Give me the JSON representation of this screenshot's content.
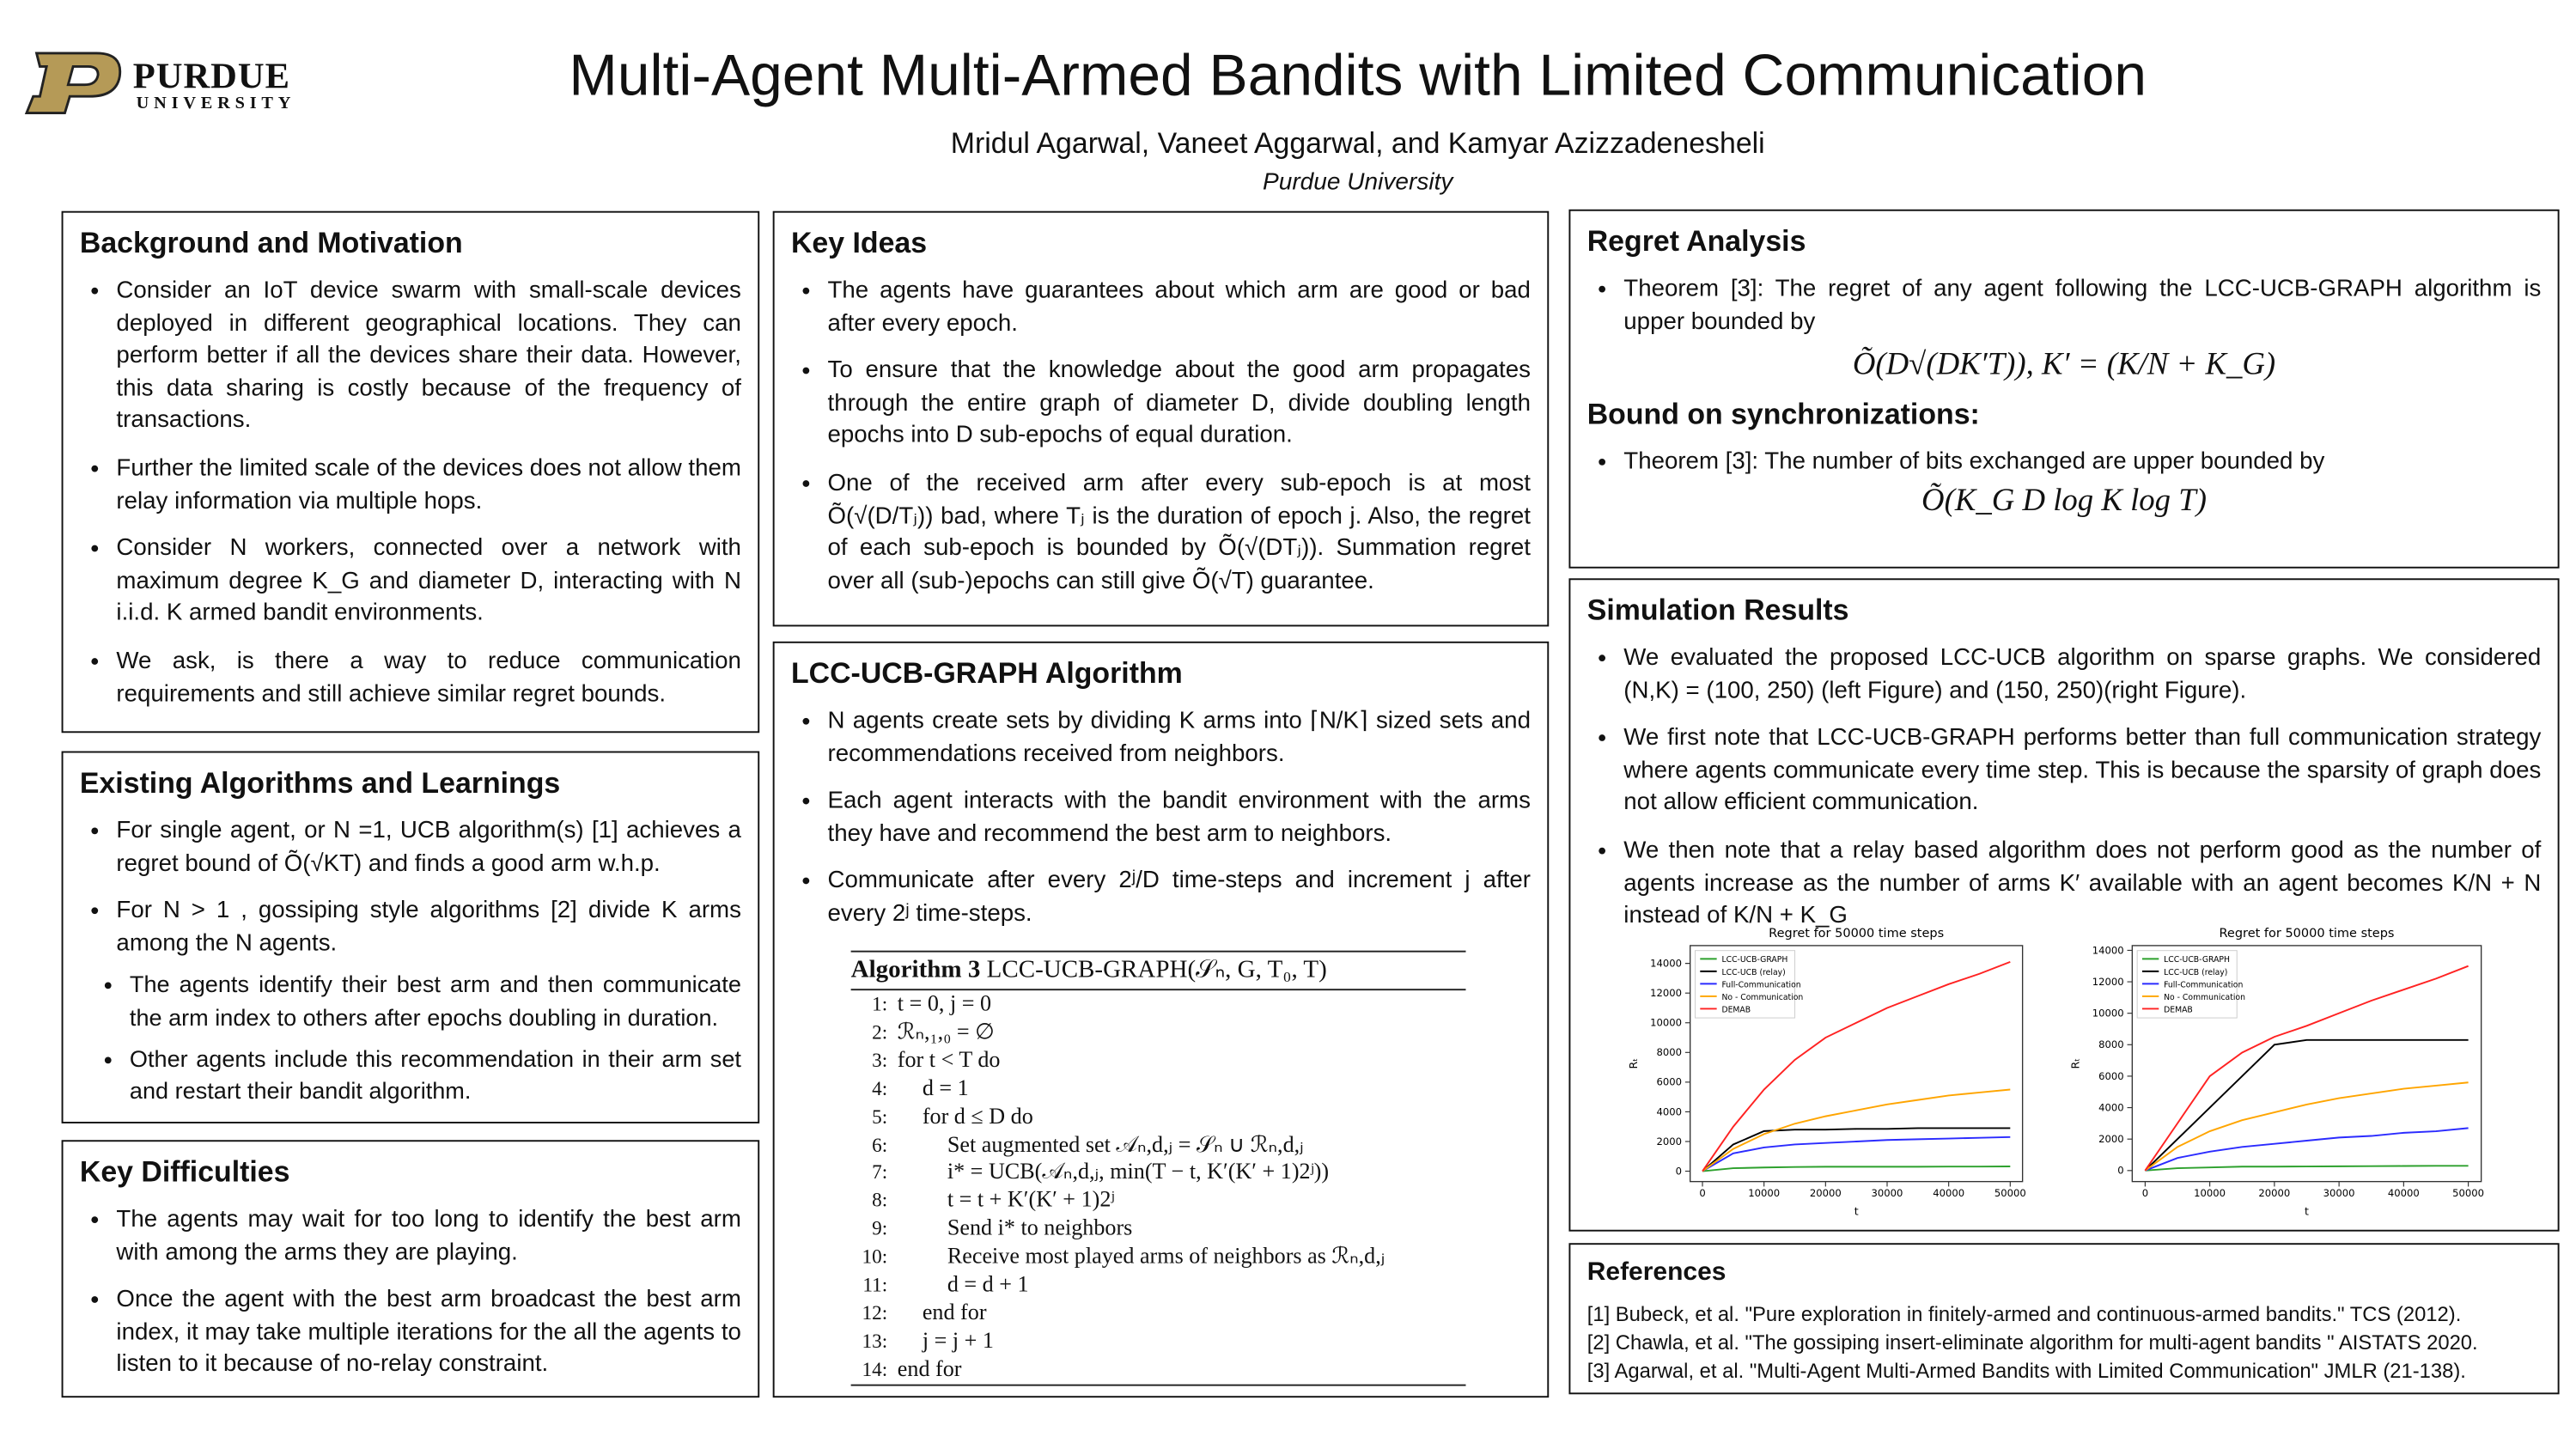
{
  "header": {
    "logo_name": "PURDUE",
    "logo_sub": "UNIVERSITY",
    "title": "Multi-Agent Multi-Armed Bandits with Limited Communication",
    "authors": "Mridul Agarwal, Vaneet Aggarwal, and Kamyar Azizzadenesheli",
    "affiliation": "Purdue University"
  },
  "sections": {
    "background": {
      "heading": "Background and Motivation",
      "bullets": [
        "Consider an IoT device swarm with small-scale devices deployed in different geographical locations. They can perform better if all the devices share their data. However, this data sharing is costly because of the frequency of transactions.",
        "Further the limited scale of the devices does not allow them relay information via multiple hops.",
        "Consider N workers, connected over a network with maximum degree K_G and diameter D, interacting with N i.i.d. K armed bandit environments.",
        "We ask, is there a way to reduce communication requirements and still achieve similar regret bounds."
      ]
    },
    "existing": {
      "heading": "Existing Algorithms and Learnings",
      "bullets": [
        "For single agent, or N =1,  UCB algorithm(s) [1] achieves a regret bound of Õ(√KT) and finds a good arm w.h.p.",
        "For N > 1 , gossiping style algorithms [2] divide K arms among the N agents."
      ],
      "sub_bullets": [
        "The agents identify their best arm and then communicate the arm index to others after epochs doubling in duration.",
        "Other agents include this recommendation in their arm set and restart their bandit algorithm."
      ]
    },
    "difficulties": {
      "heading": "Key Difficulties",
      "bullets": [
        "The agents may wait for too long to identify the best arm with among the arms they are playing.",
        "Once the agent with the best arm broadcast the best arm index, it may take multiple iterations for the all the agents to listen to it because of no-relay constraint."
      ]
    },
    "ideas": {
      "heading": "Key Ideas",
      "bullets": [
        "The agents have guarantees about which arm are good or bad after every epoch.",
        "To ensure that the knowledge about the good arm propagates through the entire graph of diameter D, divide doubling length epochs into D sub-epochs of equal duration.",
        "One of the received arm after every sub-epoch is at most Õ(√(D/Tⱼ)) bad, where Tⱼ is the duration of epoch j. Also, the regret of each sub-epoch is bounded by Õ(√(DTⱼ)). Summation regret over all (sub-)epochs can still give Õ(√T) guarantee."
      ]
    },
    "algorithm": {
      "heading": "LCC-UCB-GRAPH Algorithm",
      "bullets": [
        "N agents create sets by dividing K arms into ⌈N/K⌉ sized sets and recommendations received from neighbors.",
        "Each agent interacts with the bandit environment with the arms they have and recommend the best arm to neighbors.",
        "Communicate after every 2ʲ/D time-steps and increment j after every 2ʲ time-steps."
      ],
      "caption": "Algorithm 3",
      "caption_signature": "LCC-UCB-GRAPH(𝒮ₙ, G, T₀, T)",
      "lines": [
        {
          "no": "1:",
          "text": "t = 0, j = 0"
        },
        {
          "no": "2:",
          "text": "ℛₙ,₁,₀ = ∅"
        },
        {
          "no": "3:",
          "text": "for t < T do"
        },
        {
          "no": "4:",
          "text": "d = 1"
        },
        {
          "no": "5:",
          "text": "for d ≤ D do"
        },
        {
          "no": "6:",
          "text": "Set augmented set 𝒜ₙ,d,ⱼ = 𝒮ₙ ∪ ℛₙ,d,ⱼ"
        },
        {
          "no": "7:",
          "text": "i* = UCB(𝒜ₙ,d,ⱼ, min(T − t, K′(K′ + 1)2ʲ))"
        },
        {
          "no": "8:",
          "text": "t = t + K′(K′ + 1)2ʲ"
        },
        {
          "no": "9:",
          "text": "Send i* to neighbors"
        },
        {
          "no": "10:",
          "text": "Receive most played arms of neighbors as ℛₙ,d,ⱼ"
        },
        {
          "no": "11:",
          "text": "d = d + 1"
        },
        {
          "no": "12:",
          "text": "end for"
        },
        {
          "no": "13:",
          "text": "j = j + 1"
        },
        {
          "no": "14:",
          "text": "end for"
        }
      ]
    },
    "regret": {
      "heading": "Regret Analysis",
      "bullets": [
        "Theorem [3]: The regret of  any agent following the LCC-UCB-GRAPH algorithm is upper bounded by"
      ],
      "formula": "Õ(D√(DK′T)), K′ = (K/N + K_G)",
      "heading_2": "Bound on synchronizations:",
      "bullets_2": [
        "Theorem [3]: The number of bits exchanged are upper bounded by"
      ],
      "formula_2": "Õ(K_G D log K log T)"
    },
    "simulation": {
      "heading": "Simulation Results",
      "bullets": [
        "We evaluated the proposed LCC-UCB algorithm on sparse graphs. We considered (N,K) = (100, 250) (left Figure) and (150, 250)(right Figure).",
        "We first note that LCC-UCB-GRAPH performs better than full communication strategy where agents communicate every time step. This is because the sparsity of graph does not allow efficient communication.",
        "We then note that a relay based algorithm does not perform good as the number of agents increase as the number of arms K′ available with an agent becomes K/N + N instead of K/N + K_G"
      ],
      "charts": [
        {
          "type": "line",
          "title": "Regret for 50000 time steps",
          "x_label": "t",
          "y_label": "Rₜ",
          "legend": "upper left",
          "xlim": [
            -2000,
            52000
          ],
          "ylim": [
            -700,
            15200
          ],
          "xticks": [
            0,
            10000,
            20000,
            30000,
            40000,
            50000
          ],
          "yticks": [
            0,
            2000,
            4000,
            6000,
            8000,
            10000,
            12000,
            14000
          ],
          "x": [
            0,
            5000,
            10000,
            15000,
            20000,
            25000,
            30000,
            35000,
            40000,
            45000,
            50000
          ],
          "series": [
            {
              "name": "LCC-UCB-GRAPH",
              "color": "#2ca02c",
              "values": [
                0,
                200,
                250,
                280,
                300,
                300,
                300,
                300,
                310,
                310,
                320
              ]
            },
            {
              "name": "LCC-UCB (relay)",
              "color": "#000000",
              "values": [
                0,
                1800,
                2700,
                2800,
                2800,
                2850,
                2850,
                2900,
                2900,
                2900,
                2900
              ]
            },
            {
              "name": "Full-Communication",
              "color": "#2b2bff",
              "values": [
                0,
                1200,
                1600,
                1800,
                1900,
                2000,
                2100,
                2150,
                2200,
                2250,
                2300
              ]
            },
            {
              "name": "No - Communication",
              "color": "#ffa500",
              "values": [
                0,
                1500,
                2500,
                3200,
                3700,
                4100,
                4500,
                4800,
                5100,
                5300,
                5500
              ]
            },
            {
              "name": "DEMAB",
              "color": "#ff2222",
              "values": [
                0,
                3000,
                5500,
                7500,
                9000,
                10000,
                11000,
                11800,
                12600,
                13300,
                14100
              ]
            }
          ]
        },
        {
          "type": "line",
          "title": "Regret for 50000 time steps",
          "x_label": "t",
          "y_label": "Rₜ",
          "legend": "upper left",
          "xlim": [
            -2000,
            52000
          ],
          "ylim": [
            -700,
            14300
          ],
          "xticks": [
            0,
            10000,
            20000,
            30000,
            40000,
            50000
          ],
          "yticks": [
            0,
            2000,
            4000,
            6000,
            8000,
            10000,
            12000,
            14000
          ],
          "x": [
            0,
            5000,
            10000,
            15000,
            20000,
            25000,
            30000,
            35000,
            40000,
            45000,
            50000
          ],
          "series": [
            {
              "name": "LCC-UCB-GRAPH",
              "color": "#2ca02c",
              "values": [
                0,
                150,
                200,
                250,
                250,
                260,
                270,
                280,
                290,
                300,
                300
              ]
            },
            {
              "name": "LCC-UCB (relay)",
              "color": "#000000",
              "values": [
                0,
                2000,
                4000,
                6000,
                8000,
                8300,
                8300,
                8300,
                8300,
                8300,
                8300
              ]
            },
            {
              "name": "Full-Communication",
              "color": "#2b2bff",
              "values": [
                0,
                800,
                1200,
                1500,
                1700,
                1900,
                2100,
                2200,
                2400,
                2500,
                2700
              ]
            },
            {
              "name": "No - Communication",
              "color": "#ffa500",
              "values": [
                0,
                1500,
                2500,
                3200,
                3700,
                4200,
                4600,
                4900,
                5200,
                5400,
                5600
              ]
            },
            {
              "name": "DEMAB",
              "color": "#ff2222",
              "values": [
                0,
                3000,
                6000,
                7500,
                8500,
                9200,
                10000,
                10800,
                11500,
                12200,
                13000
              ]
            }
          ]
        }
      ]
    },
    "references": {
      "heading": "References",
      "items": [
        "[1] Bubeck, et al. \"Pure exploration in finitely-armed and continuous-armed bandits.\" TCS (2012).",
        "[2] Chawla, et al. \"The gossiping insert-eliminate algorithm for multi-agent bandits \" AISTATS 2020.",
        "[3] Agarwal, et al. \"Multi-Agent Multi-Armed Bandits with Limited Communication\" JMLR (21-138)."
      ]
    }
  }
}
